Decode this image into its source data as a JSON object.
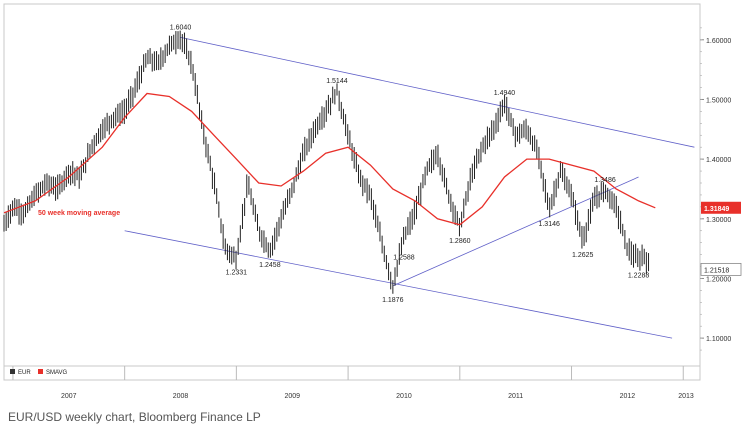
{
  "caption": "EUR/USD weekly chart, Bloomberg Finance LP",
  "chart_data": {
    "type": "line",
    "x_labels": [
      "2007",
      "2008",
      "2009",
      "2010",
      "2011",
      "2012",
      "2013"
    ],
    "y_ticks": [
      "1.10000",
      "1.20000",
      "1.30000",
      "1.40000",
      "1.50000",
      "1.60000"
    ],
    "y_tick_values": [
      1.1,
      1.2,
      1.3,
      1.4,
      1.5,
      1.6
    ],
    "ylim": [
      1.06,
      1.66
    ],
    "grid": false,
    "legend": [
      {
        "name": "EUR",
        "color": "#333333"
      },
      {
        "name": "SMAVG",
        "color": "#e8302a"
      }
    ],
    "ma_label": "50 week moving average",
    "last_price_label": "1.21518",
    "last_ma_label": "1.31849",
    "series": [
      {
        "name": "EUR",
        "points": [
          [
            2006.92,
            1.29
          ],
          [
            2007.0,
            1.32
          ],
          [
            2007.1,
            1.31
          ],
          [
            2007.2,
            1.34
          ],
          [
            2007.3,
            1.36
          ],
          [
            2007.4,
            1.35
          ],
          [
            2007.5,
            1.38
          ],
          [
            2007.6,
            1.37
          ],
          [
            2007.7,
            1.42
          ],
          [
            2007.8,
            1.45
          ],
          [
            2007.9,
            1.47
          ],
          [
            2008.0,
            1.48
          ],
          [
            2008.1,
            1.52
          ],
          [
            2008.2,
            1.57
          ],
          [
            2008.3,
            1.56
          ],
          [
            2008.4,
            1.59
          ],
          [
            2008.5,
            1.604
          ],
          [
            2008.6,
            1.56
          ],
          [
            2008.7,
            1.45
          ],
          [
            2008.8,
            1.36
          ],
          [
            2008.9,
            1.25
          ],
          [
            2009.0,
            1.2331
          ],
          [
            2009.1,
            1.36
          ],
          [
            2009.2,
            1.28
          ],
          [
            2009.3,
            1.2458
          ],
          [
            2009.4,
            1.3
          ],
          [
            2009.5,
            1.35
          ],
          [
            2009.6,
            1.41
          ],
          [
            2009.7,
            1.45
          ],
          [
            2009.8,
            1.48
          ],
          [
            2009.9,
            1.5144
          ],
          [
            2010.0,
            1.44
          ],
          [
            2010.1,
            1.37
          ],
          [
            2010.2,
            1.34
          ],
          [
            2010.3,
            1.26
          ],
          [
            2010.4,
            1.1876
          ],
          [
            2010.5,
            1.27
          ],
          [
            2010.6,
            1.31
          ],
          [
            2010.7,
            1.38
          ],
          [
            2010.8,
            1.41
          ],
          [
            2010.9,
            1.34
          ],
          [
            2011.0,
            1.286
          ],
          [
            2011.1,
            1.37
          ],
          [
            2011.2,
            1.42
          ],
          [
            2011.3,
            1.45
          ],
          [
            2011.4,
            1.494
          ],
          [
            2011.5,
            1.44
          ],
          [
            2011.6,
            1.45
          ],
          [
            2011.7,
            1.41
          ],
          [
            2011.8,
            1.3146
          ],
          [
            2011.9,
            1.38
          ],
          [
            2012.0,
            1.34
          ],
          [
            2012.1,
            1.2625
          ],
          [
            2012.2,
            1.33
          ],
          [
            2012.3,
            1.3486
          ],
          [
            2012.4,
            1.32
          ],
          [
            2012.5,
            1.25
          ],
          [
            2012.6,
            1.2288
          ],
          [
            2012.65,
            1.24
          ],
          [
            2012.7,
            1.2152
          ]
        ]
      },
      {
        "name": "SMAVG",
        "points": [
          [
            2006.92,
            1.31
          ],
          [
            2007.2,
            1.33
          ],
          [
            2007.5,
            1.37
          ],
          [
            2007.8,
            1.42
          ],
          [
            2008.0,
            1.47
          ],
          [
            2008.2,
            1.51
          ],
          [
            2008.4,
            1.505
          ],
          [
            2008.6,
            1.48
          ],
          [
            2008.8,
            1.44
          ],
          [
            2009.0,
            1.4
          ],
          [
            2009.2,
            1.36
          ],
          [
            2009.4,
            1.355
          ],
          [
            2009.6,
            1.38
          ],
          [
            2009.8,
            1.41
          ],
          [
            2010.0,
            1.42
          ],
          [
            2010.2,
            1.39
          ],
          [
            2010.4,
            1.35
          ],
          [
            2010.6,
            1.33
          ],
          [
            2010.8,
            1.3
          ],
          [
            2011.0,
            1.29
          ],
          [
            2011.2,
            1.32
          ],
          [
            2011.4,
            1.37
          ],
          [
            2011.6,
            1.4
          ],
          [
            2011.8,
            1.4
          ],
          [
            2012.0,
            1.39
          ],
          [
            2012.2,
            1.38
          ],
          [
            2012.4,
            1.35
          ],
          [
            2012.6,
            1.33
          ],
          [
            2012.75,
            1.3185
          ]
        ]
      }
    ],
    "annotations": [
      {
        "text": "1.6040",
        "x": 2008.5,
        "y": 1.604,
        "pos": "above"
      },
      {
        "text": "1.5144",
        "x": 2009.9,
        "y": 1.5144,
        "pos": "above"
      },
      {
        "text": "1.4940",
        "x": 2011.4,
        "y": 1.494,
        "pos": "above"
      },
      {
        "text": "1.3486",
        "x": 2012.3,
        "y": 1.3486,
        "pos": "above"
      },
      {
        "text": "1.2331",
        "x": 2009.0,
        "y": 1.2331,
        "pos": "below"
      },
      {
        "text": "1.2458",
        "x": 2009.3,
        "y": 1.2458,
        "pos": "below"
      },
      {
        "text": "1.1876",
        "x": 2010.4,
        "y": 1.1876,
        "pos": "below"
      },
      {
        "text": "1.2588",
        "x": 2010.5,
        "y": 1.2588,
        "pos": "below"
      },
      {
        "text": "1.2860",
        "x": 2011.0,
        "y": 1.286,
        "pos": "below"
      },
      {
        "text": "1.3146",
        "x": 2011.8,
        "y": 1.3146,
        "pos": "below"
      },
      {
        "text": "1.2625",
        "x": 2012.1,
        "y": 1.2625,
        "pos": "below"
      },
      {
        "text": "1.2288",
        "x": 2012.6,
        "y": 1.2288,
        "pos": "below"
      }
    ],
    "trendlines": [
      {
        "from": [
          2008.5,
          1.604
        ],
        "to": [
          2013.1,
          1.42
        ]
      },
      {
        "from": [
          2008.0,
          1.28
        ],
        "to": [
          2012.9,
          1.1
        ]
      },
      {
        "from": [
          2010.4,
          1.1876
        ],
        "to": [
          2012.6,
          1.37
        ]
      }
    ]
  }
}
